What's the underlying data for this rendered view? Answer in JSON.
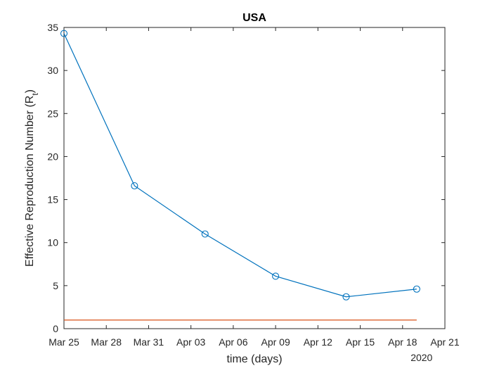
{
  "chart_data": {
    "type": "line",
    "title": "USA",
    "xlabel": "time (days)",
    "ylabel": "Effective Reproduction Number (R",
    "ylabel_subscript": "t",
    "ylabel_close": ")",
    "year_label": "2020",
    "xlim": [
      "2020-03-25",
      "2020-04-21"
    ],
    "ylim": [
      0,
      35
    ],
    "x_ticks": [
      "2020-03-25",
      "2020-03-28",
      "2020-03-31",
      "2020-04-03",
      "2020-04-06",
      "2020-04-09",
      "2020-04-12",
      "2020-04-15",
      "2020-04-18",
      "2020-04-21"
    ],
    "x_tick_labels": [
      "Mar 25",
      "Mar 28",
      "Mar 31",
      "Apr 03",
      "Apr 06",
      "Apr 09",
      "Apr 12",
      "Apr 15",
      "Apr 18",
      "Apr 21"
    ],
    "y_ticks": [
      0,
      5,
      10,
      15,
      20,
      25,
      30,
      35
    ],
    "y_tick_labels": [
      "0",
      "5",
      "10",
      "15",
      "20",
      "25",
      "30",
      "35"
    ],
    "grid": false,
    "series": [
      {
        "color": "#0072BD",
        "marker": "circle",
        "x": [
          "2020-03-25",
          "2020-03-30",
          "2020-04-04",
          "2020-04-09",
          "2020-04-14",
          "2020-04-19"
        ],
        "y": [
          34.3,
          16.6,
          11.0,
          6.1,
          3.7,
          4.6
        ]
      },
      {
        "color": "#D95319",
        "marker": "none",
        "x": [
          "2020-03-25",
          "2020-04-19"
        ],
        "y": [
          1,
          1
        ]
      }
    ]
  }
}
